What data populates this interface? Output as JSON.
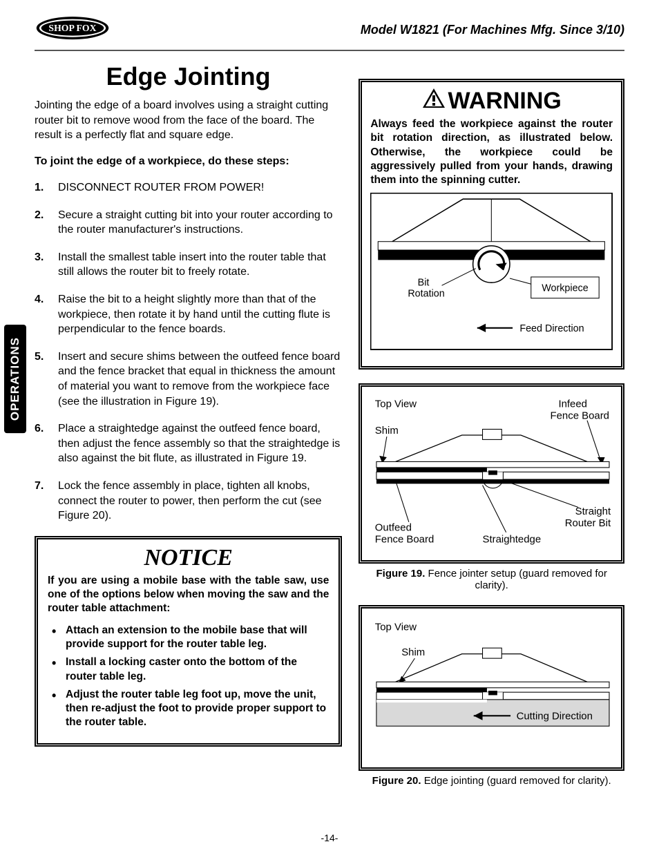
{
  "header": {
    "logo_text": "SHOP FOX",
    "model_line": "Model W1821 (For Machines Mfg. Since 3/10)"
  },
  "side_tab": "OPERATIONS",
  "title": "Edge Jointing",
  "intro": "Jointing the edge of a board involves using a straight cutting router bit to remove wood from the face of the board. The result is a perfectly flat and square edge.",
  "steps_lead": "To joint the edge of a workpiece, do these steps:",
  "steps": [
    "DISCONNECT ROUTER FROM POWER!",
    "Secure a straight cutting bit into your router according to the router manufacturer's instructions.",
    "Install the smallest table insert into the router table that still allows the router bit to freely rotate.",
    "Raise the bit to a height slightly more than that of the workpiece, then rotate it by hand until the cutting flute is perpendicular to the fence boards.",
    "Insert and secure shims between the outfeed fence board and the fence bracket that equal in thickness the amount of material you want to remove from the workpiece face (see the illustration in Figure 19).",
    "Place a straightedge against the outfeed fence board, then adjust the fence assembly so that the straightedge is also against the bit flute, as illustrated in Figure 19.",
    "Lock the fence assembly in place, tighten all knobs, connect the router to power, then perform the cut (see Figure 20)."
  ],
  "notice": {
    "title": "NOTICE",
    "text": "If you are using a mobile base with the table saw, use one of the options below when moving the saw and the router table attachment:",
    "bullets": [
      "Attach an extension to the mobile base that will provide support for the router table leg.",
      "Install a locking caster onto the bottom of the router table leg.",
      "Adjust the router table leg foot up, move the unit, then re-adjust the foot to provide proper support to the router table."
    ]
  },
  "warning": {
    "title": "WARNING",
    "text": "Always feed the workpiece against the router bit rotation direction, as illustrated below. Otherwise, the workpiece could be aggressively pulled from your hands, drawing them into the spinning cutter.",
    "labels": {
      "bit_rotation": "Bit Rotation",
      "workpiece": "Workpiece",
      "feed_direction": "Feed Direction"
    }
  },
  "fig19": {
    "caption_bold": "Figure 19.",
    "caption_rest": " Fence jointer setup (guard removed for clarity).",
    "labels": {
      "top_view": "Top View",
      "infeed": "Infeed Fence Board",
      "shim": "Shim",
      "outfeed": "Outfeed Fence Board",
      "straightedge": "Straightedge",
      "router_bit": "Straight Router Bit"
    }
  },
  "fig20": {
    "caption_bold": "Figure 20.",
    "caption_rest": " Edge jointing (guard removed for clarity).",
    "labels": {
      "top_view": "Top View",
      "shim": "Shim",
      "cutting_direction": "Cutting Direction"
    }
  },
  "page_number": "-14-",
  "colors": {
    "text": "#000000",
    "bg": "#ffffff",
    "rule": "#555555",
    "fill_gray": "#d9d9d9"
  }
}
